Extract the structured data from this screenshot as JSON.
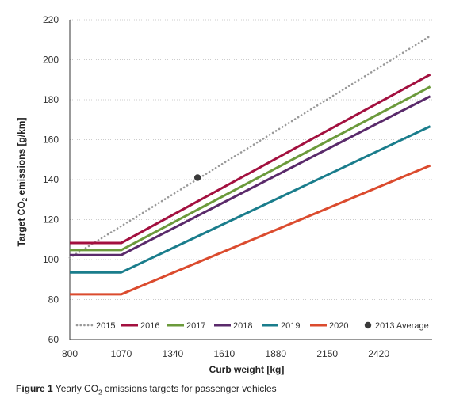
{
  "chart_data": {
    "type": "line",
    "xlabel": "Curb weight [kg]",
    "ylabel": "Target CO2 emissions [g/km]",
    "xticks": [
      800,
      1070,
      1340,
      1610,
      1880,
      2150,
      2420
    ],
    "yticks": [
      60,
      80,
      100,
      120,
      140,
      160,
      180,
      200,
      220
    ],
    "xlim": [
      800,
      2700
    ],
    "ylim": [
      60,
      220
    ],
    "grid": "horizontal dotted",
    "legend_position": "bottom",
    "series": [
      {
        "name": "2015",
        "style": "dotted",
        "color": "#999999",
        "points": [
          [
            800,
            100.9
          ],
          [
            2690,
            211.9
          ]
        ]
      },
      {
        "name": "2016",
        "style": "solid",
        "color": "#a3103f",
        "points": [
          [
            800,
            108.3
          ],
          [
            1070,
            108.3
          ],
          [
            2690,
            192.6
          ]
        ]
      },
      {
        "name": "2017",
        "style": "solid",
        "color": "#6b9a3b",
        "points": [
          [
            800,
            104.8
          ],
          [
            1070,
            104.8
          ],
          [
            2690,
            186.5
          ]
        ]
      },
      {
        "name": "2018",
        "style": "solid",
        "color": "#5a2a6b",
        "points": [
          [
            800,
            102.3
          ],
          [
            1070,
            102.3
          ],
          [
            2690,
            181.7
          ]
        ]
      },
      {
        "name": "2019",
        "style": "solid",
        "color": "#1a7d8c",
        "points": [
          [
            800,
            93.6
          ],
          [
            1070,
            93.6
          ],
          [
            2690,
            166.7
          ]
        ]
      },
      {
        "name": "2020",
        "style": "solid",
        "color": "#db4b2e",
        "points": [
          [
            800,
            82.6
          ],
          [
            1070,
            82.6
          ],
          [
            2690,
            147.1
          ]
        ]
      }
    ],
    "markers": [
      {
        "name": "2013 Average",
        "color": "#3a3a3a",
        "x": 1470,
        "y": 141
      }
    ]
  },
  "caption": {
    "figure_label": "Figure 1",
    "text_before_sub": " Yearly CO",
    "sub": "2",
    "text_after_sub": " emissions targets for passenger vehicles"
  }
}
